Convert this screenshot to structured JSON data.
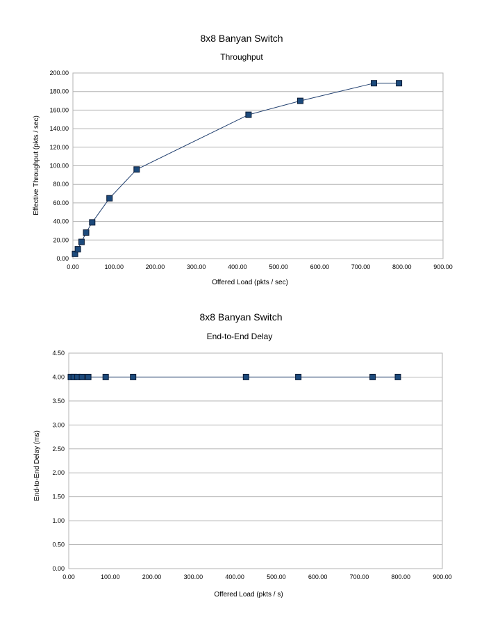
{
  "chart_data": [
    {
      "type": "line",
      "title": "8x8 Banyan Switch",
      "subtitle": "Throughput",
      "xlabel": "Offered Load (pkts / sec)",
      "ylabel": "Effective Throughput (pkts / sec)",
      "xlim": [
        0,
        900
      ],
      "ylim": [
        0,
        200
      ],
      "grid": true,
      "legend": "none",
      "marker": "square",
      "colors": {
        "line": "#1f3e6e",
        "marker_fill": "#1c4a7c",
        "marker_edge": "#0b1a33",
        "grid": "#b3b3b3"
      },
      "xticks": [
        "0.00",
        "100.00",
        "200.00",
        "300.00",
        "400.00",
        "500.00",
        "600.00",
        "700.00",
        "800.00",
        "900.00"
      ],
      "yticks": [
        "0.00",
        "20.00",
        "40.00",
        "60.00",
        "80.00",
        "100.00",
        "120.00",
        "140.00",
        "160.00",
        "180.00",
        "200.00"
      ],
      "series": [
        {
          "x": [
            5,
            12,
            21,
            32,
            47,
            89,
            155,
            427,
            553,
            732,
            793
          ],
          "y": [
            5,
            10,
            18,
            28,
            39,
            65,
            96,
            155,
            170,
            189,
            189
          ]
        }
      ]
    },
    {
      "type": "line",
      "title": "8x8 Banyan Switch",
      "subtitle": "End-to-End Delay",
      "xlabel": "Offered Load (pkts / s)",
      "ylabel": "End-to-End Delay (ms)",
      "xlim": [
        0,
        900
      ],
      "ylim": [
        0,
        4.5
      ],
      "grid": true,
      "legend": "none",
      "marker": "square",
      "colors": {
        "line": "#1f3e6e",
        "marker_fill": "#1c4a7c",
        "marker_edge": "#0b1a33",
        "grid": "#b3b3b3"
      },
      "xticks": [
        "0.00",
        "100.00",
        "200.00",
        "300.00",
        "400.00",
        "500.00",
        "600.00",
        "700.00",
        "800.00",
        "900.00"
      ],
      "yticks": [
        "0.00",
        "0.50",
        "1.00",
        "1.50",
        "2.00",
        "2.50",
        "3.00",
        "3.50",
        "4.00",
        "4.50"
      ],
      "series": [
        {
          "x": [
            5,
            12,
            21,
            32,
            47,
            89,
            155,
            427,
            553,
            732,
            793
          ],
          "y": [
            4,
            4,
            4,
            4,
            4,
            4,
            4,
            4,
            4,
            4,
            4
          ]
        }
      ]
    }
  ]
}
